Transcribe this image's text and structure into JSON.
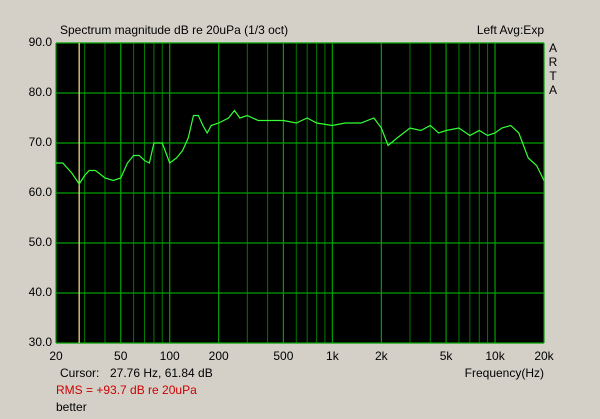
{
  "chart_data": {
    "type": "line",
    "title": "Spectrum magnitude dB re 20uPa (1/3 oct)",
    "subtitle": "Left Avg:Exp",
    "brand": [
      "A",
      "R",
      "T",
      "A"
    ],
    "x_label": "Frequency(Hz)",
    "log_x": true,
    "xlim": [
      20,
      20000
    ],
    "xticks": [
      20,
      50,
      100,
      200,
      500,
      {
        "value": 1000,
        "label": "1k"
      },
      {
        "value": 2000,
        "label": "2k"
      },
      {
        "value": 5000,
        "label": "5k"
      },
      {
        "value": 10000,
        "label": "10k"
      },
      {
        "value": 20000,
        "label": "20k"
      }
    ],
    "xgrid": [
      30,
      40,
      60,
      70,
      80,
      90,
      300,
      400,
      600,
      700,
      800,
      900,
      3000,
      4000,
      6000,
      7000,
      8000,
      9000
    ],
    "ylim": [
      30,
      90
    ],
    "yticks": [
      {
        "value": 30,
        "label": "30.0"
      },
      {
        "value": 40,
        "label": "40.0"
      },
      {
        "value": 50,
        "label": "50.0"
      },
      {
        "value": 60,
        "label": "60.0"
      },
      {
        "value": 70,
        "label": "70.0"
      },
      {
        "value": 80,
        "label": "80.0"
      },
      {
        "value": 90,
        "label": "90.0"
      }
    ],
    "grid": true,
    "x": [
      20,
      22,
      25,
      27.76,
      30,
      32,
      35,
      40,
      45,
      50,
      55,
      60,
      65,
      70,
      75,
      80,
      90,
      100,
      110,
      120,
      130,
      140,
      150,
      160,
      170,
      180,
      200,
      230,
      250,
      270,
      300,
      350,
      400,
      500,
      600,
      700,
      800,
      1000,
      1200,
      1500,
      1800,
      2000,
      2200,
      2500,
      3000,
      3500,
      4000,
      4500,
      5000,
      6000,
      7000,
      8000,
      9000,
      10000,
      11000,
      12500,
      14000,
      16000,
      18000,
      20000
    ],
    "series": [
      {
        "color": "#33ff33",
        "values": [
          66,
          66,
          64,
          61.8,
          63.5,
          64.5,
          64.5,
          63,
          62.5,
          63,
          66,
          67.5,
          67.5,
          66.5,
          66,
          70,
          70,
          66,
          67,
          68.5,
          71,
          75.5,
          75.5,
          73.5,
          72,
          73.5,
          74,
          75,
          76.5,
          75,
          75.5,
          74.5,
          74.5,
          74.5,
          74,
          75,
          74,
          73.5,
          74,
          74,
          75,
          73,
          69.5,
          71,
          73,
          72.5,
          73.5,
          72,
          72.5,
          73,
          71.5,
          72.5,
          71.5,
          72,
          73,
          73.5,
          72,
          67,
          65.5,
          62.5
        ]
      }
    ],
    "cursor": {
      "label": "Cursor:",
      "text": "27.76 Hz, 61.84 dB",
      "x": 27.76,
      "color": "#ffe680"
    },
    "rms": "RMS =  +93.7 dB re 20uPa",
    "note": "better"
  }
}
